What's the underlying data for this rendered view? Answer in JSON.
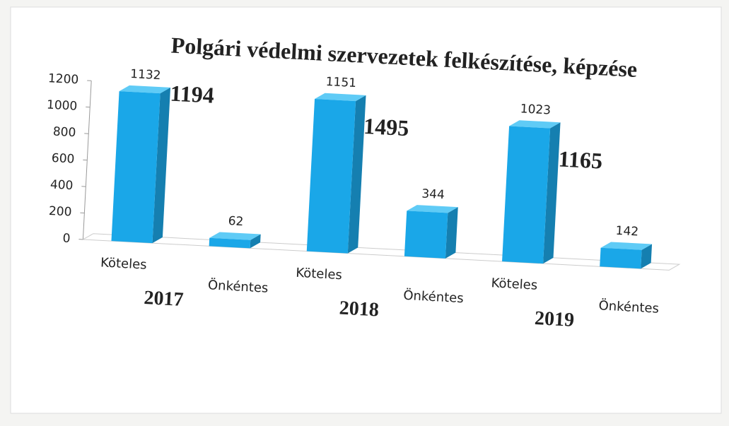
{
  "chart_data": {
    "type": "bar3d",
    "title": "Polgári védelmi szervezetek felkészítése, képzése",
    "categories": [
      "Köteles",
      "Önkéntes",
      "Köteles",
      "Önkéntes",
      "Köteles",
      "Önkéntes"
    ],
    "values": [
      1132,
      62,
      1151,
      344,
      1023,
      142
    ],
    "groups": [
      {
        "label": "2017",
        "total": 1194
      },
      {
        "label": "2018",
        "total": 1495
      },
      {
        "label": "2019",
        "total": 1165
      }
    ],
    "color": "#1aa7e8",
    "ylim": [
      0,
      1200
    ],
    "yticks": [
      0,
      200,
      400,
      600,
      800,
      1000,
      1200
    ]
  }
}
